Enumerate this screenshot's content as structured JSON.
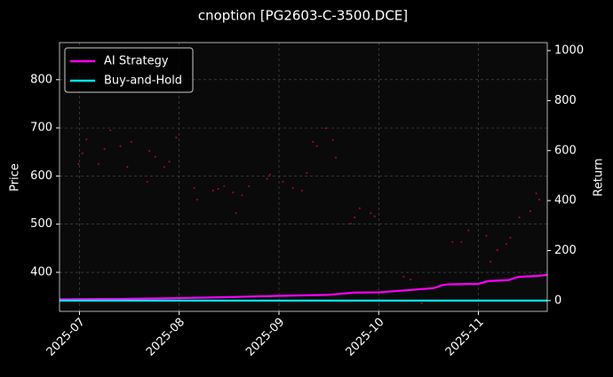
{
  "chart_data": {
    "type": "line",
    "title": "cnoption [PG2603-C-3500.DCE]",
    "ylabel": "Price",
    "y2label": "Return",
    "xlim": [
      6.8,
      11.69
    ],
    "xticks": [
      {
        "value": 7,
        "label": "2025-07"
      },
      {
        "value": 8,
        "label": "2025-08"
      },
      {
        "value": 9,
        "label": "2025-09"
      },
      {
        "value": 10,
        "label": "2025-10"
      },
      {
        "value": 11,
        "label": "2025-11"
      }
    ],
    "ylim": [
      319,
      877
    ],
    "yticks": [
      400,
      500,
      600,
      700,
      800
    ],
    "y2lim": [
      -43,
      1032
    ],
    "y2ticks": [
      0,
      200,
      400,
      600,
      800,
      1000
    ],
    "grid": true,
    "legend": "upper left",
    "series": [
      {
        "name": "AI Strategy",
        "color": "#ff00ff",
        "axis": "y2",
        "x": [
          6.8,
          7.5,
          8.0,
          8.5,
          9.0,
          9.5,
          9.75,
          10.0,
          10.3,
          10.55,
          10.65,
          10.7,
          11.0,
          11.1,
          11.3,
          11.4,
          11.6,
          11.69
        ],
        "values": [
          5,
          7,
          10,
          14,
          19,
          23,
          32,
          33,
          42,
          50,
          63,
          65,
          67,
          78,
          82,
          95,
          99,
          103
        ]
      },
      {
        "name": "Buy-and-Hold",
        "color": "#00e5ee",
        "axis": "y2",
        "x": [
          6.8,
          11.69
        ],
        "values": [
          0,
          0
        ]
      },
      {
        "type": "scatter",
        "color": "#c00030",
        "x": [
          6.99,
          7.03,
          7.07,
          7.19,
          7.25,
          7.31,
          7.41,
          7.48,
          7.52,
          7.68,
          7.7,
          7.76,
          7.85,
          7.9,
          7.97,
          8.15,
          8.18,
          8.34,
          8.39,
          8.45,
          8.54,
          8.57,
          8.63,
          8.7,
          8.88,
          8.91,
          9.04,
          9.14,
          9.23,
          9.28,
          9.34,
          9.38,
          9.47,
          9.54,
          9.57,
          9.72,
          9.76,
          9.81,
          9.92,
          9.96,
          10.25,
          10.32,
          10.43,
          10.74,
          10.83,
          10.9,
          11.08,
          11.12,
          11.19,
          11.28,
          11.32,
          11.41,
          11.52,
          11.58,
          11.61
        ],
        "values": [
          625,
          647,
          676,
          625,
          656,
          695,
          662,
          619,
          671,
          588,
          652,
          640,
          619,
          630,
          680,
          575,
          551,
          570,
          573,
          579,
          566,
          523,
          560,
          579,
          594,
          603,
          588,
          575,
          570,
          606,
          671,
          662,
          699,
          675,
          638,
          501,
          514,
          533,
          523,
          516,
          391,
          385,
          336,
          463,
          463,
          487,
          476,
          422,
          446,
          459,
          472,
          514,
          527,
          564,
          551
        ]
      }
    ]
  }
}
